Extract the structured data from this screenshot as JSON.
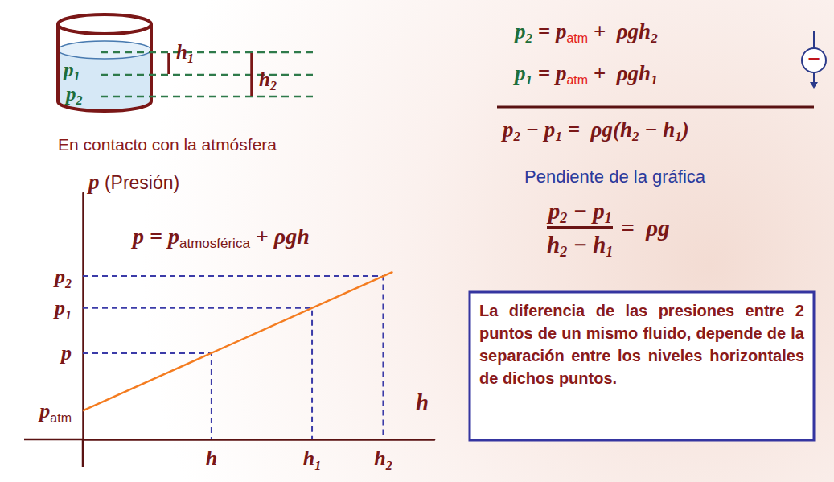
{
  "slide": {
    "container": {
      "points": [
        {
          "text": "p",
          "sub": "1",
          "color": "green"
        },
        {
          "text": "p",
          "sub": "2",
          "color": "green"
        }
      ],
      "depths": [
        {
          "text": "h",
          "sub": "1"
        },
        {
          "text": "h",
          "sub": "2"
        }
      ],
      "caption": "En contacto con la atmósfera"
    },
    "equations": {
      "lines": [
        [
          {
            "text": "p",
            "sub": "2",
            "color": "green"
          },
          {
            "text": " = "
          },
          {
            "text": "p",
            "sub": "atm",
            "sub_color": "red"
          },
          {
            "text": " +  ρgh",
            "sub": "2"
          }
        ],
        [
          {
            "text": "p",
            "sub": "1",
            "color": "green"
          },
          {
            "text": " = "
          },
          {
            "text": "p",
            "sub": "atm",
            "sub_color": "red"
          },
          {
            "text": " +  ρgh",
            "sub": "1"
          }
        ]
      ],
      "operation": "−",
      "result": [
        {
          "text": "p",
          "sub": "2"
        },
        {
          "text": " − p",
          "sub": "1"
        },
        {
          "text": " =  ρg(h",
          "sub": "2"
        },
        {
          "text": " − h",
          "sub": "1"
        },
        {
          "text": ")"
        }
      ]
    },
    "slope": {
      "title": "Pendiente de la gráfica",
      "numerator": [
        {
          "text": "p",
          "sub": "2"
        },
        {
          "text": " − p",
          "sub": "1"
        }
      ],
      "denominator": [
        {
          "text": "h",
          "sub": "2"
        },
        {
          "text": " − h",
          "sub": "1"
        }
      ],
      "rhs": [
        {
          "text": "=  ρg"
        }
      ]
    },
    "note": "La diferencia de las presiones entre 2 puntos de un mismo fluido, depende de la separación entre los niveles horizontales de dichos puntos."
  },
  "chart_data": {
    "type": "line",
    "ylabel": [
      {
        "text": "p"
      },
      {
        "text": " (Presión)",
        "style": "plain"
      }
    ],
    "xlabel": [
      {
        "text": "h"
      }
    ],
    "annotation": [
      {
        "text": "p = p",
        "sub": "atmosférica"
      },
      {
        "text": " + ρgh"
      }
    ],
    "x": [
      0,
      38.8
    ],
    "values": [
      3.5,
      20.4
    ],
    "color": "#f47c20",
    "xlim": [
      0,
      44
    ],
    "ylim": [
      0,
      30
    ],
    "xticks": [
      {
        "value": 16.1,
        "label": {
          "text": "h"
        }
      },
      {
        "value": 28.7,
        "label": {
          "text": "h",
          "sub": "1"
        }
      },
      {
        "value": 37.6,
        "label": {
          "text": "h",
          "sub": "2"
        }
      }
    ],
    "yticks": [
      {
        "value": 3.5,
        "label": {
          "text": "p",
          "sub": "atm"
        }
      },
      {
        "value": 10.5,
        "label": {
          "text": "p"
        }
      },
      {
        "value": 16,
        "label": {
          "text": "p",
          "sub": "1"
        }
      },
      {
        "value": 19.9,
        "label": {
          "text": "p",
          "sub": "2"
        }
      }
    ],
    "grid": false
  }
}
